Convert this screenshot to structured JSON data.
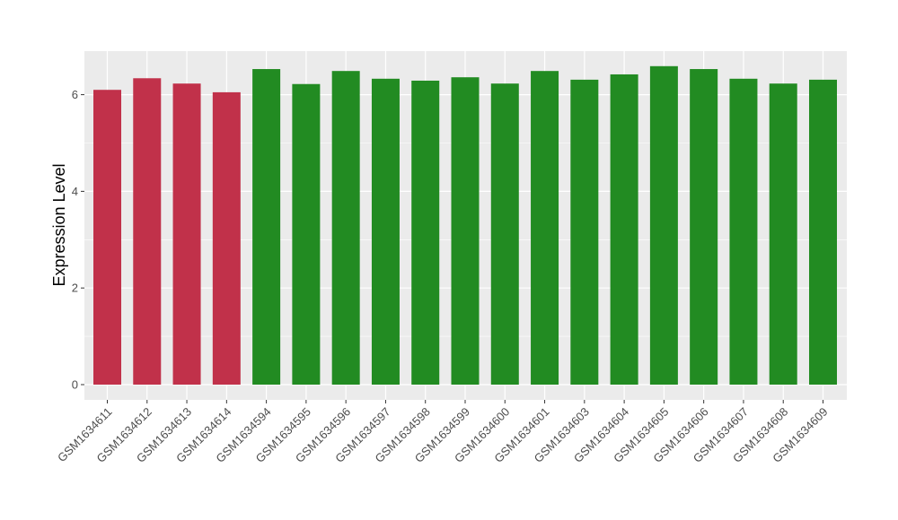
{
  "chart_data": {
    "type": "bar",
    "title": "",
    "xlabel": "",
    "ylabel": "Expression Level",
    "ylim": [
      0,
      6.9
    ],
    "yticks": [
      0,
      2,
      4,
      6
    ],
    "grid": true,
    "legend": "none",
    "categories": [
      "GSM1634611",
      "GSM1634612",
      "GSM1634613",
      "GSM1634614",
      "GSM1634594",
      "GSM1634595",
      "GSM1634596",
      "GSM1634597",
      "GSM1634598",
      "GSM1634599",
      "GSM1634600",
      "GSM1634601",
      "GSM1634603",
      "GSM1634604",
      "GSM1634605",
      "GSM1634606",
      "GSM1634607",
      "GSM1634608",
      "GSM1634609"
    ],
    "values": [
      6.1,
      6.34,
      6.23,
      6.05,
      6.53,
      6.22,
      6.49,
      6.33,
      6.29,
      6.36,
      6.23,
      6.49,
      6.31,
      6.42,
      6.59,
      6.53,
      6.33,
      6.23,
      6.31
    ],
    "bar_colors": [
      "#C1314A",
      "#C1314A",
      "#C1314A",
      "#C1314A",
      "#228B22",
      "#228B22",
      "#228B22",
      "#228B22",
      "#228B22",
      "#228B22",
      "#228B22",
      "#228B22",
      "#228B22",
      "#228B22",
      "#228B22",
      "#228B22",
      "#228B22",
      "#228B22",
      "#228B22"
    ],
    "panel_color": "#EBEBEB",
    "grid_color": "#FFFFFF"
  }
}
